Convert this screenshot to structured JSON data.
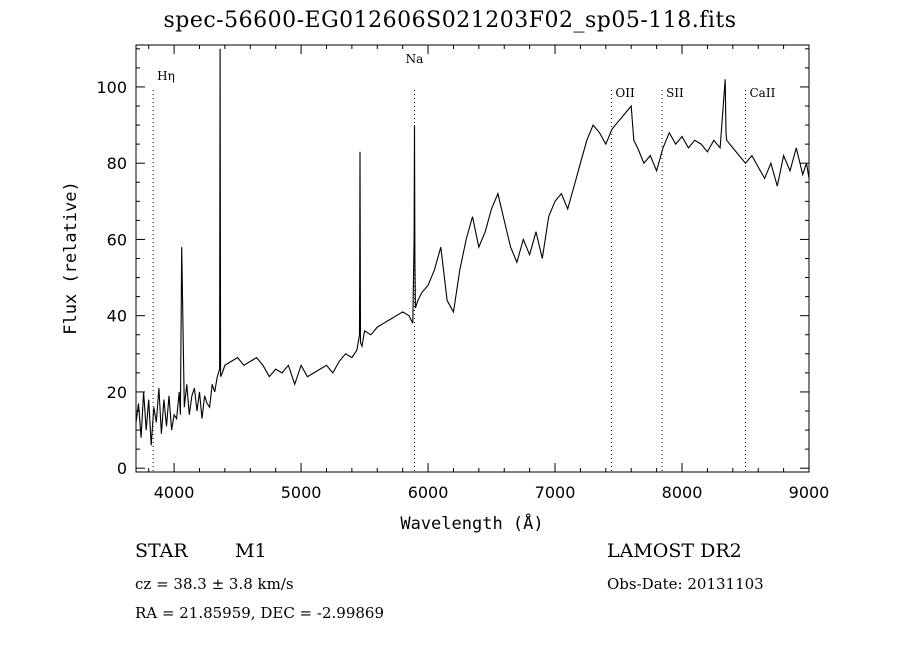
{
  "title": "spec-56600-EG012606S021203F02_sp05-118.fits",
  "info": {
    "object_type": "STAR",
    "object_class": "M1",
    "survey": "LAMOST DR2",
    "cz": "cz = 38.3 ± 3.8 km/s",
    "obs_date": "Obs-Date: 20131103",
    "radec": "RA =  21.85959, DEC =  -2.99869"
  },
  "chart_data": {
    "type": "line",
    "xlabel": "Wavelength (Å)",
    "ylabel": "Flux (relative)",
    "xlim": [
      3700,
      9000
    ],
    "ylim": [
      -1,
      111
    ],
    "xticks": [
      4000,
      5000,
      6000,
      7000,
      8000,
      9000
    ],
    "yticks": [
      0,
      20,
      40,
      60,
      80,
      100
    ],
    "grid": false,
    "line_color": "#000000",
    "marker_color": "#000000",
    "line_markers": [
      {
        "label": "Hη",
        "x": 3835
      },
      {
        "label": "Na",
        "x": 5893
      },
      {
        "label": "OII",
        "x": 7444
      },
      {
        "label": "SII",
        "x": 7843
      },
      {
        "label": "CaII",
        "x": 8500
      }
    ],
    "series": [
      {
        "x": [
          3700,
          3720,
          3740,
          3760,
          3780,
          3800,
          3820,
          3840,
          3860,
          3880,
          3900,
          3920,
          3940,
          3960,
          3980,
          4000,
          4020,
          4040,
          4050,
          4060,
          4080,
          4100,
          4120,
          4140,
          4160,
          4180,
          4200,
          4220,
          4240,
          4260,
          4280,
          4300,
          4320,
          4340,
          4358,
          4362,
          4366,
          4380,
          4400,
          4450,
          4500,
          4550,
          4600,
          4650,
          4700,
          4750,
          4800,
          4850,
          4900,
          4950,
          5000,
          5050,
          5100,
          5150,
          5200,
          5250,
          5300,
          5350,
          5400,
          5440,
          5460,
          5464,
          5468,
          5480,
          5500,
          5550,
          5600,
          5650,
          5700,
          5750,
          5800,
          5850,
          5880,
          5890,
          5893,
          5896,
          5900,
          5920,
          5950,
          6000,
          6050,
          6100,
          6150,
          6200,
          6250,
          6300,
          6350,
          6400,
          6450,
          6500,
          6550,
          6600,
          6650,
          6700,
          6750,
          6800,
          6850,
          6900,
          6950,
          7000,
          7050,
          7100,
          7150,
          7200,
          7250,
          7300,
          7350,
          7400,
          7450,
          7500,
          7550,
          7600,
          7620,
          7650,
          7700,
          7750,
          7800,
          7850,
          7900,
          7950,
          8000,
          8050,
          8100,
          8150,
          8200,
          8250,
          8300,
          8340,
          8346,
          8352,
          8400,
          8450,
          8500,
          8550,
          8600,
          8650,
          8700,
          8750,
          8800,
          8850,
          8900,
          8950,
          8980,
          9000
        ],
        "values": [
          12,
          17,
          8,
          20,
          10,
          18,
          6,
          16,
          12,
          21,
          9,
          18,
          11,
          19,
          10,
          14,
          13,
          20,
          14,
          58,
          16,
          22,
          14,
          19,
          21,
          15,
          20,
          13,
          19,
          17,
          16,
          22,
          20,
          24,
          26,
          110,
          24,
          25,
          27,
          28,
          29,
          27,
          28,
          29,
          27,
          24,
          26,
          25,
          27,
          22,
          27,
          24,
          25,
          26,
          27,
          25,
          28,
          30,
          29,
          31,
          35,
          83,
          33,
          32,
          36,
          35,
          37,
          38,
          39,
          40,
          41,
          40,
          38,
          60,
          90,
          55,
          42,
          44,
          46,
          48,
          52,
          58,
          44,
          41,
          52,
          60,
          66,
          58,
          62,
          68,
          72,
          65,
          58,
          54,
          60,
          56,
          62,
          55,
          66,
          70,
          72,
          68,
          74,
          80,
          86,
          90,
          88,
          85,
          89,
          91,
          93,
          95,
          86,
          84,
          80,
          82,
          78,
          84,
          88,
          85,
          87,
          84,
          86,
          85,
          83,
          86,
          84,
          102,
          88,
          86,
          84,
          82,
          80,
          82,
          79,
          76,
          80,
          74,
          82,
          78,
          84,
          77,
          80,
          76
        ]
      }
    ]
  }
}
